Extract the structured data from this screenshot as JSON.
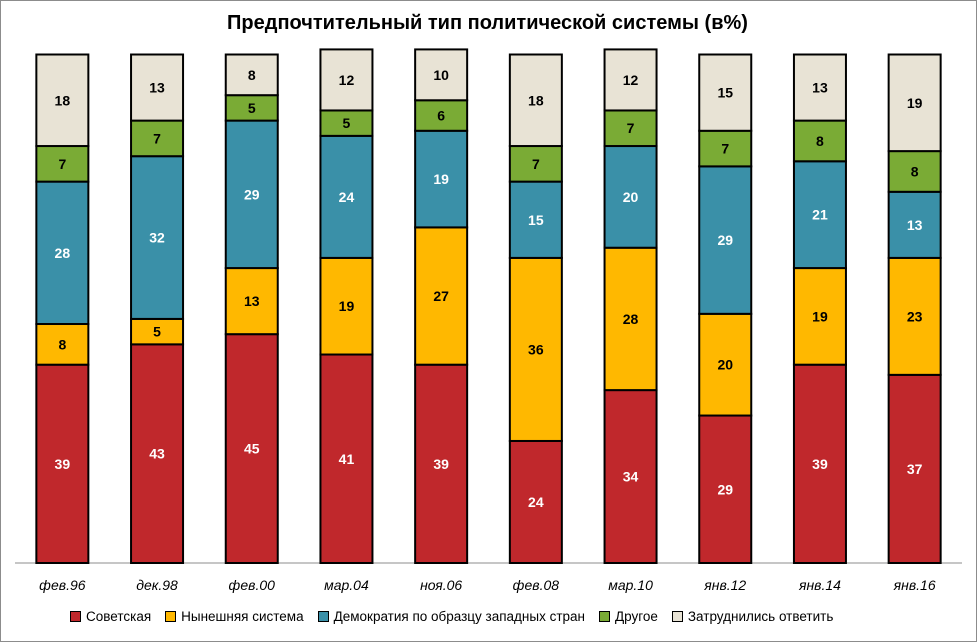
{
  "chart_data": {
    "type": "bar",
    "stacked": true,
    "title": "Предпочтительный тип политической системы (в%)",
    "categories": [
      "фев.96",
      "дек.98",
      "фев.00",
      "мар.04",
      "ноя.06",
      "фев.08",
      "мар.10",
      "янв.12",
      "янв.14",
      "янв.16"
    ],
    "series": [
      {
        "name": "Советская",
        "color": "#c0282c",
        "label_color": "#ffffff",
        "values": [
          39,
          43,
          45,
          41,
          39,
          24,
          34,
          29,
          39,
          37
        ]
      },
      {
        "name": "Нынешняя система",
        "color": "#ffb800",
        "label_color": "#000000",
        "values": [
          8,
          5,
          13,
          19,
          27,
          36,
          28,
          20,
          19,
          23
        ]
      },
      {
        "name": "Демократия по образцу западных стран",
        "color": "#3a90a8",
        "label_color": "#ffffff",
        "values": [
          28,
          32,
          29,
          24,
          19,
          15,
          20,
          29,
          21,
          13
        ]
      },
      {
        "name": "Другое",
        "color": "#7aab35",
        "label_color": "#000000",
        "values": [
          7,
          7,
          5,
          5,
          6,
          7,
          7,
          7,
          8,
          8
        ]
      },
      {
        "name": "Затруднились ответить",
        "color": "#e8e3d5",
        "label_color": "#000000",
        "values": [
          18,
          13,
          8,
          12,
          10,
          18,
          12,
          15,
          13,
          19
        ]
      }
    ],
    "ylim": [
      0,
      100
    ],
    "grid": false,
    "legend_position": "bottom"
  }
}
